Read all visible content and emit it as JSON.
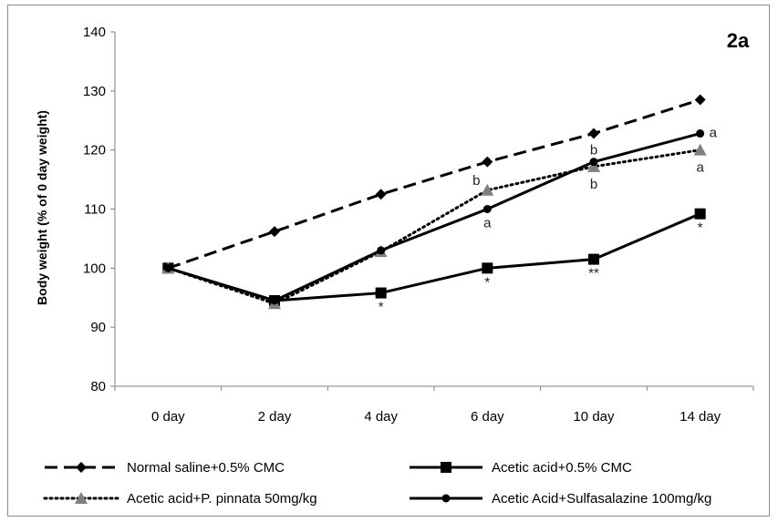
{
  "chart_data": {
    "type": "line",
    "title": "2a",
    "xlabel": "",
    "ylabel": "Body weight (% of 0 day weight)",
    "categories": [
      "0 day",
      "2 day",
      "4 day",
      "6 day",
      "10 day",
      "14 day"
    ],
    "ylim": [
      80,
      140
    ],
    "yticks": [
      80,
      90,
      100,
      110,
      120,
      130,
      140
    ],
    "grid": false,
    "legend_position": "bottom",
    "series": [
      {
        "name": "Normal saline+0.5% CMC",
        "values": [
          100,
          106.2,
          112.5,
          118,
          122.8,
          128.5
        ],
        "line_style": "dashed",
        "marker": "diamond",
        "color": "#000000",
        "labels": [
          "",
          "",
          "",
          "",
          "",
          ""
        ]
      },
      {
        "name": "Acetic acid+0.5% CMC",
        "values": [
          100,
          94.5,
          95.8,
          100,
          101.5,
          109.2
        ],
        "line_style": "solid",
        "marker": "square",
        "color": "#000000",
        "labels": [
          "",
          "",
          "*",
          "*",
          "**",
          "*"
        ]
      },
      {
        "name": "Acetic acid+P. pinnata 50mg/kg",
        "values": [
          100,
          94,
          102.8,
          113.2,
          117.2,
          120
        ],
        "line_style": "dotted",
        "marker": "triangle",
        "color": "#808080",
        "labels": [
          "",
          "",
          "",
          "b",
          "b",
          "a"
        ]
      },
      {
        "name": "Acetic Acid+Sulfasalazine 100mg/kg",
        "values": [
          100,
          94.5,
          103,
          110,
          118,
          122.8
        ],
        "line_style": "solid",
        "marker": "circle",
        "color": "#000000",
        "labels": [
          "",
          "",
          "",
          "a",
          "b",
          "a"
        ]
      }
    ]
  }
}
